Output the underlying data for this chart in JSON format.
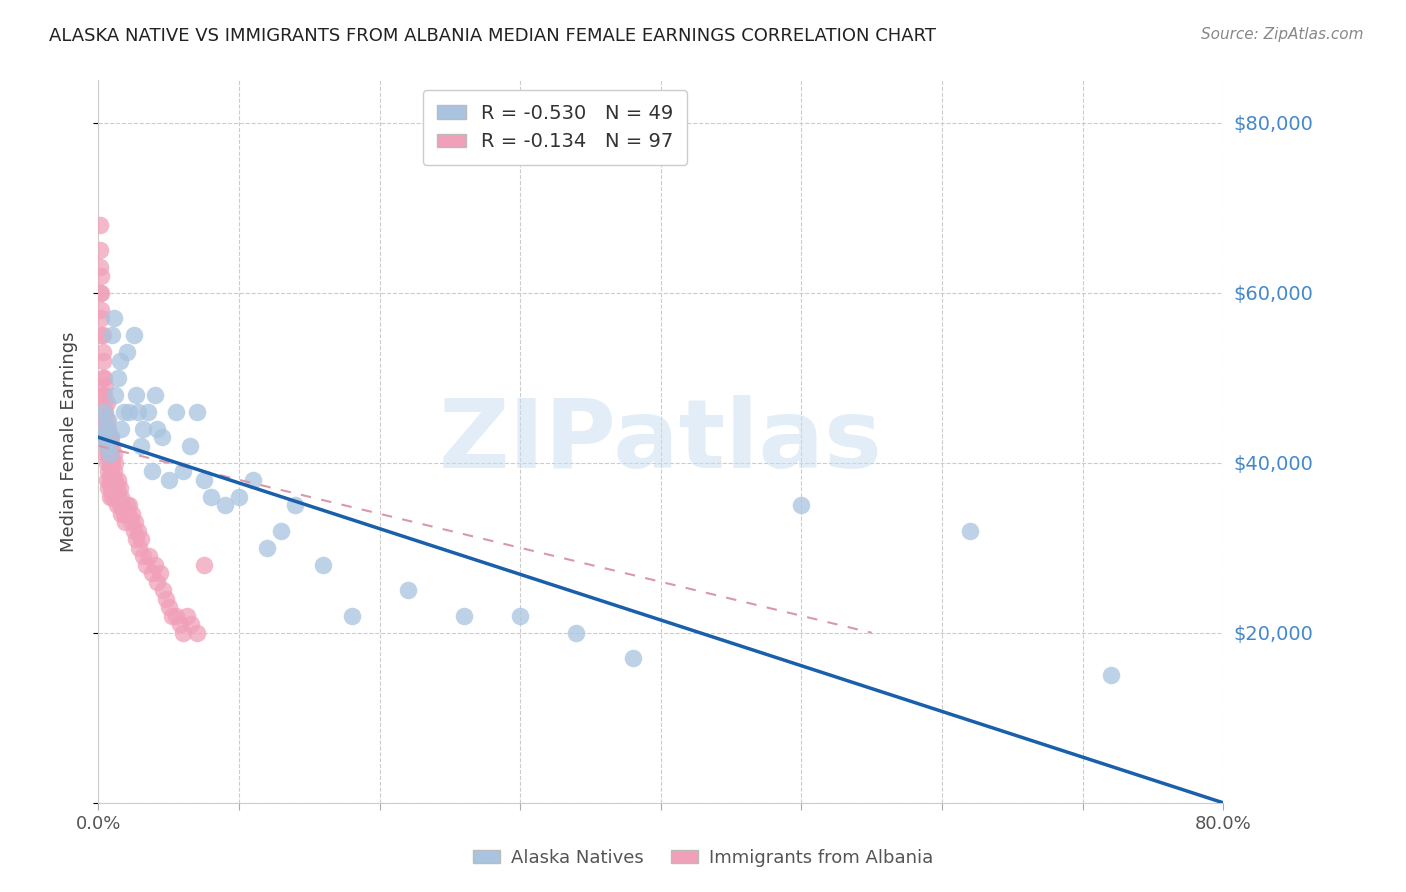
{
  "title": "ALASKA NATIVE VS IMMIGRANTS FROM ALBANIA MEDIAN FEMALE EARNINGS CORRELATION CHART",
  "source": "Source: ZipAtlas.com",
  "ylabel": "Median Female Earnings",
  "watermark": "ZIPatlas",
  "xlim": [
    0.0,
    0.8
  ],
  "ylim": [
    0,
    85000
  ],
  "yticks": [
    0,
    20000,
    40000,
    60000,
    80000
  ],
  "xticks": [
    0.0,
    0.1,
    0.2,
    0.3,
    0.4,
    0.5,
    0.6,
    0.7,
    0.8
  ],
  "alaska_color": "#a8c4e0",
  "albania_color": "#f0a0b8",
  "alaska_line_color": "#1a5faa",
  "albania_line_color": "#d898a8",
  "alaska_R": -0.53,
  "alaska_N": 49,
  "albania_R": -0.134,
  "albania_N": 97,
  "alaska_x": [
    0.003,
    0.004,
    0.005,
    0.006,
    0.007,
    0.008,
    0.009,
    0.01,
    0.011,
    0.012,
    0.014,
    0.015,
    0.016,
    0.018,
    0.02,
    0.022,
    0.025,
    0.027,
    0.028,
    0.03,
    0.032,
    0.035,
    0.038,
    0.04,
    0.042,
    0.045,
    0.05,
    0.055,
    0.06,
    0.065,
    0.07,
    0.075,
    0.08,
    0.09,
    0.1,
    0.11,
    0.12,
    0.13,
    0.14,
    0.16,
    0.18,
    0.22,
    0.26,
    0.3,
    0.34,
    0.38,
    0.5,
    0.62,
    0.72
  ],
  "alaska_y": [
    43000,
    46000,
    44000,
    42000,
    45000,
    41000,
    43000,
    55000,
    57000,
    48000,
    50000,
    52000,
    44000,
    46000,
    53000,
    46000,
    55000,
    48000,
    46000,
    42000,
    44000,
    46000,
    39000,
    48000,
    44000,
    43000,
    38000,
    46000,
    39000,
    42000,
    46000,
    38000,
    36000,
    35000,
    36000,
    38000,
    30000,
    32000,
    35000,
    28000,
    22000,
    25000,
    22000,
    22000,
    20000,
    17000,
    35000,
    32000,
    15000
  ],
  "albania_x": [
    0.001,
    0.001,
    0.001,
    0.001,
    0.002,
    0.002,
    0.002,
    0.002,
    0.002,
    0.003,
    0.003,
    0.003,
    0.003,
    0.003,
    0.004,
    0.004,
    0.004,
    0.004,
    0.004,
    0.005,
    0.005,
    0.005,
    0.005,
    0.005,
    0.006,
    0.006,
    0.006,
    0.006,
    0.006,
    0.006,
    0.006,
    0.007,
    0.007,
    0.007,
    0.007,
    0.007,
    0.007,
    0.008,
    0.008,
    0.008,
    0.008,
    0.008,
    0.008,
    0.009,
    0.009,
    0.009,
    0.009,
    0.01,
    0.01,
    0.01,
    0.01,
    0.011,
    0.011,
    0.011,
    0.012,
    0.012,
    0.012,
    0.013,
    0.013,
    0.014,
    0.014,
    0.015,
    0.015,
    0.016,
    0.016,
    0.017,
    0.018,
    0.019,
    0.02,
    0.021,
    0.022,
    0.023,
    0.024,
    0.025,
    0.026,
    0.027,
    0.028,
    0.029,
    0.03,
    0.032,
    0.034,
    0.036,
    0.038,
    0.04,
    0.042,
    0.044,
    0.046,
    0.048,
    0.05,
    0.052,
    0.055,
    0.058,
    0.06,
    0.063,
    0.066,
    0.07,
    0.075
  ],
  "albania_y": [
    68000,
    65000,
    63000,
    60000,
    62000,
    58000,
    60000,
    55000,
    57000,
    53000,
    55000,
    50000,
    52000,
    48000,
    50000,
    47000,
    45000,
    48000,
    43000,
    46000,
    49000,
    44000,
    41000,
    43000,
    45000,
    47000,
    42000,
    44000,
    40000,
    43000,
    38000,
    42000,
    44000,
    41000,
    39000,
    43000,
    37000,
    43000,
    40000,
    42000,
    38000,
    36000,
    41000,
    41000,
    39000,
    43000,
    37000,
    38000,
    40000,
    42000,
    36000,
    39000,
    41000,
    37000,
    38000,
    40000,
    36000,
    37000,
    35000,
    38000,
    36000,
    35000,
    37000,
    34000,
    36000,
    35000,
    34000,
    33000,
    35000,
    34000,
    35000,
    33000,
    34000,
    32000,
    33000,
    31000,
    32000,
    30000,
    31000,
    29000,
    28000,
    29000,
    27000,
    28000,
    26000,
    27000,
    25000,
    24000,
    23000,
    22000,
    22000,
    21000,
    20000,
    22000,
    21000,
    20000,
    28000
  ]
}
